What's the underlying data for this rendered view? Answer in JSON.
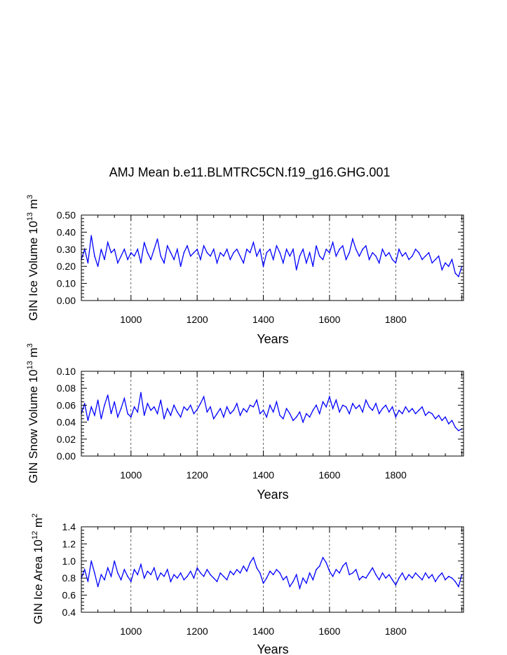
{
  "title": "AMJ Mean b.e11.BLMTRC5CN.f19_g16.GHG.001",
  "chart_data": [
    {
      "type": "line",
      "title": "AMJ Mean b.e11.BLMTRC5CN.f19_g16.GHG.001",
      "ylabel": {
        "main": "GIN Ice Volume 10",
        "exp": "13",
        "unit": " m",
        "unit_exp": "3"
      },
      "xlabel": "Years",
      "xlim": [
        850,
        2005
      ],
      "ylim": [
        0.0,
        0.5
      ],
      "xticks": [
        "1000",
        "1200",
        "1400",
        "1600",
        "1800"
      ],
      "yticks": [
        "0.00",
        "0.10",
        "0.20",
        "0.30",
        "0.40",
        "0.50"
      ],
      "grid": "dashed vertical lines at labeled x ticks",
      "series": [
        {
          "color": "#0000ff",
          "x": [
            850,
            860,
            870,
            880,
            890,
            900,
            910,
            920,
            930,
            940,
            950,
            960,
            970,
            980,
            990,
            1000,
            1010,
            1020,
            1030,
            1040,
            1050,
            1060,
            1070,
            1080,
            1090,
            1100,
            1110,
            1120,
            1130,
            1140,
            1150,
            1160,
            1170,
            1180,
            1190,
            1200,
            1210,
            1220,
            1230,
            1240,
            1250,
            1260,
            1270,
            1280,
            1290,
            1300,
            1310,
            1320,
            1330,
            1340,
            1350,
            1360,
            1370,
            1380,
            1390,
            1400,
            1410,
            1420,
            1430,
            1440,
            1450,
            1460,
            1470,
            1480,
            1490,
            1500,
            1510,
            1520,
            1530,
            1540,
            1550,
            1560,
            1570,
            1580,
            1590,
            1600,
            1610,
            1620,
            1630,
            1640,
            1650,
            1660,
            1670,
            1680,
            1690,
            1700,
            1710,
            1720,
            1730,
            1740,
            1750,
            1760,
            1770,
            1780,
            1790,
            1800,
            1810,
            1820,
            1830,
            1840,
            1850,
            1860,
            1870,
            1880,
            1890,
            1900,
            1910,
            1920,
            1930,
            1940,
            1950,
            1960,
            1970,
            1980,
            1990,
            2000
          ],
          "values": [
            0.24,
            0.3,
            0.22,
            0.38,
            0.26,
            0.2,
            0.3,
            0.24,
            0.34,
            0.28,
            0.3,
            0.22,
            0.26,
            0.3,
            0.24,
            0.28,
            0.26,
            0.3,
            0.22,
            0.34,
            0.28,
            0.24,
            0.3,
            0.36,
            0.26,
            0.22,
            0.32,
            0.28,
            0.24,
            0.3,
            0.2,
            0.28,
            0.32,
            0.26,
            0.28,
            0.3,
            0.24,
            0.32,
            0.28,
            0.26,
            0.3,
            0.22,
            0.28,
            0.26,
            0.3,
            0.24,
            0.28,
            0.3,
            0.26,
            0.22,
            0.3,
            0.28,
            0.34,
            0.26,
            0.3,
            0.2,
            0.28,
            0.3,
            0.24,
            0.32,
            0.28,
            0.22,
            0.3,
            0.26,
            0.3,
            0.18,
            0.26,
            0.3,
            0.22,
            0.28,
            0.2,
            0.32,
            0.26,
            0.24,
            0.3,
            0.28,
            0.34,
            0.26,
            0.3,
            0.32,
            0.24,
            0.28,
            0.36,
            0.3,
            0.26,
            0.3,
            0.32,
            0.24,
            0.28,
            0.26,
            0.22,
            0.3,
            0.26,
            0.28,
            0.24,
            0.22,
            0.3,
            0.26,
            0.28,
            0.24,
            0.26,
            0.3,
            0.28,
            0.24,
            0.26,
            0.28,
            0.22,
            0.24,
            0.26,
            0.18,
            0.22,
            0.2,
            0.24,
            0.16,
            0.14,
            0.2
          ]
        }
      ]
    },
    {
      "type": "line",
      "ylabel": {
        "main": "GIN Snow Volume 10",
        "exp": "13",
        "unit": " m",
        "unit_exp": "3"
      },
      "xlabel": "Years",
      "xlim": [
        850,
        2005
      ],
      "ylim": [
        0.0,
        0.1
      ],
      "xticks": [
        "1000",
        "1200",
        "1400",
        "1600",
        "1800"
      ],
      "yticks": [
        "0.00",
        "0.02",
        "0.04",
        "0.06",
        "0.08",
        "0.10"
      ],
      "grid": "dashed vertical lines at labeled x ticks",
      "series": [
        {
          "color": "#0000ff",
          "x": [
            850,
            860,
            870,
            880,
            890,
            900,
            910,
            920,
            930,
            940,
            950,
            960,
            970,
            980,
            990,
            1000,
            1010,
            1020,
            1030,
            1040,
            1050,
            1060,
            1070,
            1080,
            1090,
            1100,
            1110,
            1120,
            1130,
            1140,
            1150,
            1160,
            1170,
            1180,
            1190,
            1200,
            1210,
            1220,
            1230,
            1240,
            1250,
            1260,
            1270,
            1280,
            1290,
            1300,
            1310,
            1320,
            1330,
            1340,
            1350,
            1360,
            1370,
            1380,
            1390,
            1400,
            1410,
            1420,
            1430,
            1440,
            1450,
            1460,
            1470,
            1480,
            1490,
            1500,
            1510,
            1520,
            1530,
            1540,
            1550,
            1560,
            1570,
            1580,
            1590,
            1600,
            1610,
            1620,
            1630,
            1640,
            1650,
            1660,
            1670,
            1680,
            1690,
            1700,
            1710,
            1720,
            1730,
            1740,
            1750,
            1760,
            1770,
            1780,
            1790,
            1800,
            1810,
            1820,
            1830,
            1840,
            1850,
            1860,
            1870,
            1880,
            1890,
            1900,
            1910,
            1920,
            1930,
            1940,
            1950,
            1960,
            1970,
            1980,
            1990,
            2000
          ],
          "values": [
            0.05,
            0.062,
            0.042,
            0.058,
            0.048,
            0.066,
            0.044,
            0.06,
            0.072,
            0.05,
            0.064,
            0.046,
            0.056,
            0.068,
            0.05,
            0.046,
            0.058,
            0.052,
            0.075,
            0.048,
            0.062,
            0.054,
            0.058,
            0.05,
            0.066,
            0.044,
            0.056,
            0.048,
            0.06,
            0.052,
            0.046,
            0.058,
            0.054,
            0.06,
            0.05,
            0.055,
            0.062,
            0.07,
            0.052,
            0.058,
            0.044,
            0.05,
            0.056,
            0.046,
            0.058,
            0.05,
            0.054,
            0.062,
            0.048,
            0.056,
            0.052,
            0.06,
            0.058,
            0.066,
            0.05,
            0.054,
            0.046,
            0.06,
            0.052,
            0.064,
            0.048,
            0.044,
            0.056,
            0.05,
            0.042,
            0.046,
            0.052,
            0.04,
            0.05,
            0.046,
            0.054,
            0.06,
            0.05,
            0.064,
            0.058,
            0.07,
            0.056,
            0.066,
            0.052,
            0.06,
            0.058,
            0.05,
            0.062,
            0.056,
            0.06,
            0.052,
            0.066,
            0.058,
            0.054,
            0.062,
            0.05,
            0.056,
            0.06,
            0.052,
            0.058,
            0.046,
            0.054,
            0.05,
            0.058,
            0.052,
            0.056,
            0.05,
            0.054,
            0.058,
            0.048,
            0.052,
            0.05,
            0.044,
            0.048,
            0.042,
            0.046,
            0.038,
            0.042,
            0.034,
            0.03,
            0.032
          ]
        }
      ]
    },
    {
      "type": "line",
      "ylabel": {
        "main": "GIN Ice Area 10",
        "exp": "12",
        "unit": " m",
        "unit_exp": "2"
      },
      "xlabel": "Years",
      "xlim": [
        850,
        2005
      ],
      "ylim": [
        0.4,
        1.4
      ],
      "xticks": [
        "1000",
        "1200",
        "1400",
        "1600",
        "1800"
      ],
      "yticks": [
        "0.4",
        "0.6",
        "0.8",
        "1.0",
        "1.2",
        "1.4"
      ],
      "grid": "dashed vertical lines at labeled x ticks",
      "series": [
        {
          "color": "#0000ff",
          "x": [
            850,
            860,
            870,
            880,
            890,
            900,
            910,
            920,
            930,
            940,
            950,
            960,
            970,
            980,
            990,
            1000,
            1010,
            1020,
            1030,
            1040,
            1050,
            1060,
            1070,
            1080,
            1090,
            1100,
            1110,
            1120,
            1130,
            1140,
            1150,
            1160,
            1170,
            1180,
            1190,
            1200,
            1210,
            1220,
            1230,
            1240,
            1250,
            1260,
            1270,
            1280,
            1290,
            1300,
            1310,
            1320,
            1330,
            1340,
            1350,
            1360,
            1370,
            1380,
            1390,
            1400,
            1410,
            1420,
            1430,
            1440,
            1450,
            1460,
            1470,
            1480,
            1490,
            1500,
            1510,
            1520,
            1530,
            1540,
            1550,
            1560,
            1570,
            1580,
            1590,
            1600,
            1610,
            1620,
            1630,
            1640,
            1650,
            1660,
            1670,
            1680,
            1690,
            1700,
            1710,
            1720,
            1730,
            1740,
            1750,
            1760,
            1770,
            1780,
            1790,
            1800,
            1810,
            1820,
            1830,
            1840,
            1850,
            1860,
            1870,
            1880,
            1890,
            1900,
            1910,
            1920,
            1930,
            1940,
            1950,
            1960,
            1970,
            1980,
            1990,
            2000
          ],
          "values": [
            0.8,
            0.9,
            0.76,
            1.0,
            0.86,
            0.7,
            0.84,
            0.78,
            0.92,
            0.82,
            1.0,
            0.86,
            0.78,
            0.9,
            0.82,
            0.76,
            0.9,
            0.84,
            0.96,
            0.8,
            0.88,
            0.84,
            0.92,
            0.78,
            0.86,
            0.82,
            0.9,
            0.76,
            0.84,
            0.8,
            0.86,
            0.78,
            0.82,
            0.88,
            0.8,
            0.92,
            0.86,
            0.82,
            0.9,
            0.84,
            0.8,
            0.76,
            0.86,
            0.82,
            0.78,
            0.88,
            0.84,
            0.9,
            0.86,
            0.94,
            0.88,
            0.98,
            1.04,
            0.92,
            0.86,
            0.74,
            0.8,
            0.88,
            0.84,
            0.9,
            0.86,
            0.78,
            0.82,
            0.7,
            0.76,
            0.84,
            0.68,
            0.8,
            0.74,
            0.86,
            0.78,
            0.9,
            0.94,
            1.04,
            0.98,
            0.88,
            0.82,
            0.9,
            0.86,
            0.94,
            0.98,
            0.84,
            0.86,
            0.9,
            0.78,
            0.82,
            0.8,
            0.86,
            0.92,
            0.84,
            0.78,
            0.86,
            0.8,
            0.84,
            0.78,
            0.72,
            0.8,
            0.86,
            0.78,
            0.84,
            0.8,
            0.86,
            0.82,
            0.78,
            0.86,
            0.8,
            0.84,
            0.76,
            0.82,
            0.86,
            0.78,
            0.82,
            0.8,
            0.76,
            0.7,
            0.84
          ]
        }
      ]
    }
  ]
}
